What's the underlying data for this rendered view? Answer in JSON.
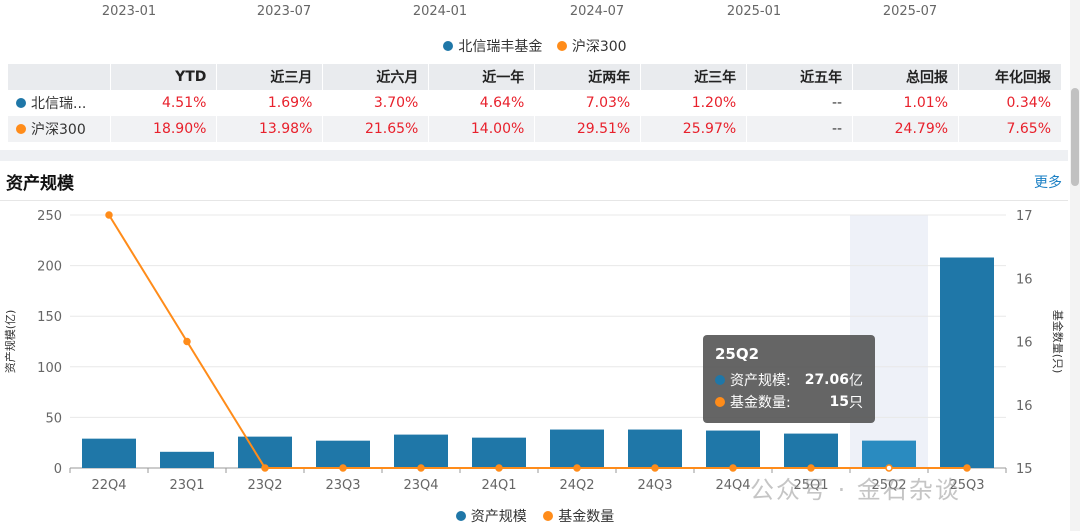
{
  "top_axis": {
    "labels": [
      "2023-01",
      "2023-07",
      "2024-01",
      "2024-07",
      "2025-01",
      "2025-07"
    ]
  },
  "top_legend": [
    {
      "name": "北信瑞丰基金",
      "color": "#1f77a8"
    },
    {
      "name": "沪深300",
      "color": "#ff8c1a"
    }
  ],
  "performance_table": {
    "headers": [
      "",
      "YTD",
      "近三月",
      "近六月",
      "近一年",
      "近两年",
      "近三年",
      "近五年",
      "总回报",
      "年化回报"
    ],
    "rows": [
      {
        "name": "北信瑞...",
        "color": "#1f77a8",
        "values": [
          "4.51%",
          "1.69%",
          "3.70%",
          "4.64%",
          "7.03%",
          "1.20%",
          "--",
          "1.01%",
          "0.34%"
        ]
      },
      {
        "name": "沪深300",
        "color": "#ff8c1a",
        "values": [
          "18.90%",
          "13.98%",
          "21.65%",
          "14.00%",
          "29.51%",
          "25.97%",
          "--",
          "24.79%",
          "7.65%"
        ]
      }
    ]
  },
  "section": {
    "title": "资产规模",
    "more": "更多"
  },
  "chart_data": {
    "type": "bar",
    "categories": [
      "22Q4",
      "23Q1",
      "23Q2",
      "23Q3",
      "23Q4",
      "24Q1",
      "24Q2",
      "24Q3",
      "24Q4",
      "25Q1",
      "25Q2",
      "25Q3"
    ],
    "series": [
      {
        "name": "资产规模",
        "type": "bar",
        "axis": "left",
        "color": "#1f77a8",
        "values": [
          29,
          16,
          31,
          27,
          33,
          30,
          38,
          38,
          37,
          34,
          27.06,
          208
        ]
      },
      {
        "name": "基金数量",
        "type": "line",
        "axis": "right",
        "color": "#ff8c1a",
        "values": [
          17,
          16,
          15,
          15,
          15,
          15,
          15,
          15,
          15,
          15,
          15,
          15
        ]
      }
    ],
    "ylabel": "资产规模(亿)",
    "y2label": "基金数量(只)",
    "ylim": [
      0,
      250
    ],
    "yticks": [
      "0",
      "50",
      "100",
      "150",
      "200",
      "250"
    ],
    "y2lim": [
      15,
      17
    ],
    "y2ticks": [
      "15",
      "16",
      "16",
      "16",
      "17"
    ],
    "highlight_category": "25Q2",
    "grid": true,
    "legend": "bottom"
  },
  "tooltip": {
    "title": "25Q2",
    "rows": [
      {
        "label": "资产规模:",
        "value": "27.06",
        "unit": "亿",
        "color": "#1f77a8"
      },
      {
        "label": "基金数量:",
        "value": "15",
        "unit": "只",
        "color": "#ff8c1a"
      }
    ]
  },
  "watermark": "公众号 · 金石杂谈"
}
